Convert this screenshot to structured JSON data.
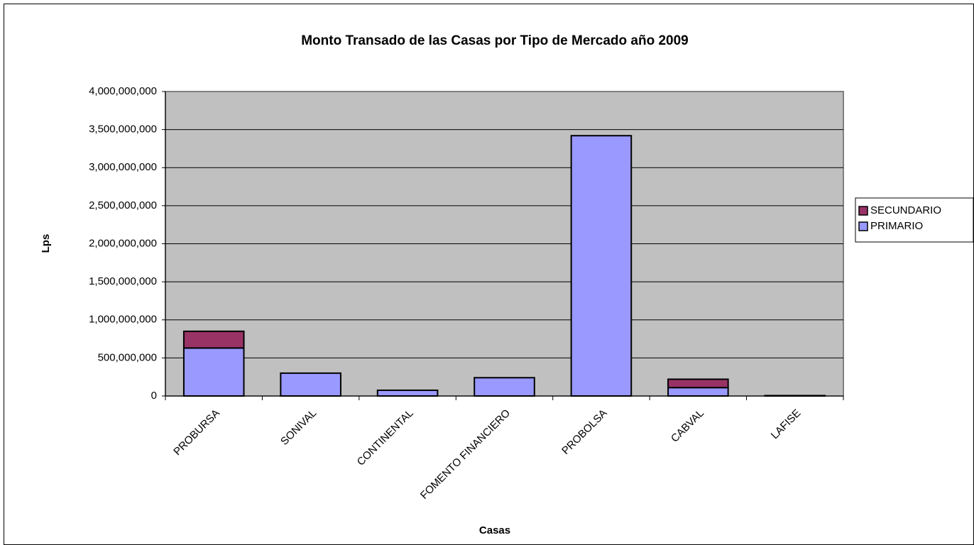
{
  "chart_data": {
    "type": "bar",
    "stacked": true,
    "title": "Monto Transado de las Casas por Tipo de Mercado año 2009",
    "x_label": "Casas",
    "y_label": "Lps",
    "categories": [
      "PROBURSA",
      "SONIVAL",
      "CONTINENTAL",
      "FOMENTO FINANCIERO",
      "PROBOLSA",
      "CABVAL",
      "LAFISE"
    ],
    "series": [
      {
        "name": "PRIMARIO",
        "color": "#9999ff",
        "values": [
          630000000,
          300000000,
          75000000,
          240000000,
          3420000000,
          110000000,
          5000000
        ]
      },
      {
        "name": "SECUNDARIO",
        "color": "#993366",
        "values": [
          220000000,
          0,
          0,
          0,
          0,
          110000000,
          0
        ]
      }
    ],
    "ylim": [
      0,
      4000000000
    ],
    "yticks": [
      0,
      {
        "value": 500000000,
        "label": "500,000,000"
      },
      {
        "value": 1000000000,
        "label": "1,000,000,000"
      },
      {
        "value": 1500000000,
        "label": "1,500,000,000"
      },
      {
        "value": 2000000000,
        "label": "2,000,000,000"
      },
      {
        "value": 2500000000,
        "label": "2,500,000,000"
      },
      {
        "value": 3000000000,
        "label": "3,000,000,000"
      },
      {
        "value": 3500000000,
        "label": "3,500,000,000"
      },
      {
        "value": 4000000000,
        "label": "4,000,000,000"
      }
    ],
    "grid": true,
    "legend": "right",
    "plot_background": "#c0c0c0"
  }
}
